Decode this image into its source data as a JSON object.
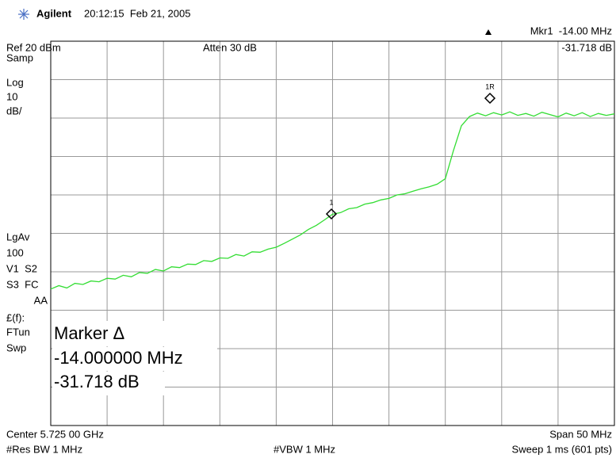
{
  "header": {
    "brand": "Agilent",
    "timestamp": "20:12:15  Feb 21, 2005"
  },
  "top": {
    "marker_readout": "Mkr1  -14.00 MHz",
    "ref": "Ref 20 dBm",
    "atten": "Atten 30 dB",
    "marker_value": "-31.718 dB"
  },
  "left_panel": [
    "Samp",
    "Log",
    "10",
    "dB/",
    "LgAv",
    "100",
    "V1  S2",
    "S3  FC",
    "AA",
    "£(f):",
    "FTun",
    "Swp"
  ],
  "marker_box": {
    "title": "Marker Δ",
    "frequency": "-14.000000 MHz",
    "value": "-31.718 dB"
  },
  "markers": [
    "1",
    "1R"
  ],
  "trace": {
    "color": "#33dd33",
    "ylim": [
      -80,
      20
    ],
    "values": [
      -44.5,
      -43.6,
      -44.2,
      -43.0,
      -43.3,
      -42.4,
      -42.6,
      -41.7,
      -41.9,
      -40.9,
      -41.3,
      -40.2,
      -40.4,
      -39.4,
      -39.8,
      -38.7,
      -38.9,
      -38.0,
      -38.1,
      -37.1,
      -37.3,
      -36.4,
      -36.5,
      -35.5,
      -35.9,
      -34.8,
      -34.9,
      -34.1,
      -33.6,
      -32.6,
      -31.5,
      -30.4,
      -29.0,
      -27.9,
      -26.5,
      -25.0,
      -24.6,
      -23.6,
      -23.3,
      -22.4,
      -22.0,
      -21.3,
      -20.9,
      -20.0,
      -19.7,
      -19.0,
      -18.4,
      -17.9,
      -17.2,
      -15.8,
      -8.5,
      -2.0,
      0.4,
      1.3,
      0.6,
      1.4,
      0.8,
      1.6,
      0.7,
      1.2,
      0.5,
      1.5,
      0.9,
      0.3,
      1.3,
      0.6,
      1.4,
      0.4,
      1.2,
      0.7,
      1.1
    ]
  },
  "footer": {
    "center": "Center 5.725 00 GHz",
    "span": "Span 50 MHz",
    "rbw": "#Res BW 1 MHz",
    "vbw": "#VBW 1 MHz",
    "sweep": "Sweep 1 ms (601 pts)"
  }
}
